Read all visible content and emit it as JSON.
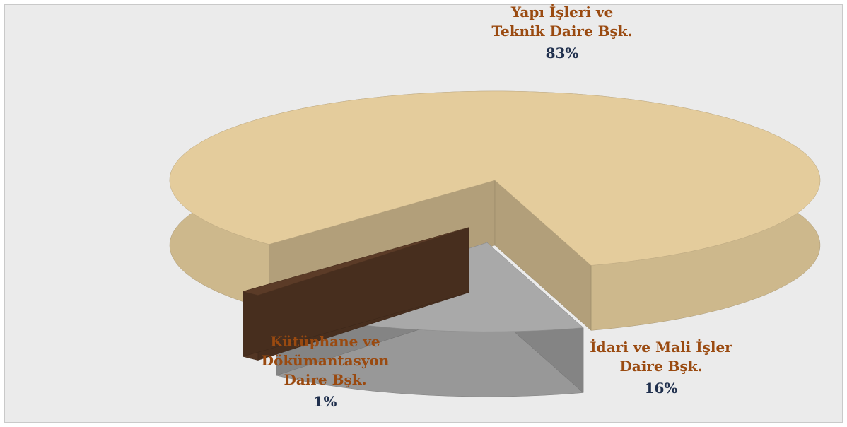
{
  "chart_data": {
    "type": "pie3d",
    "categories": [
      "Yapı İşleri ve\nTeknik Daire Bşk.",
      "İdari ve Mali İşler\nDaire Bşk.",
      "Kütüphane ve\nDökümantasyon\nDaire Bşk."
    ],
    "values": [
      83,
      16,
      1
    ],
    "value_labels": [
      "83%",
      "16%",
      "1%"
    ],
    "colors": [
      "#e4cc9c",
      "#a9a9a9",
      "#5b3b27"
    ]
  }
}
